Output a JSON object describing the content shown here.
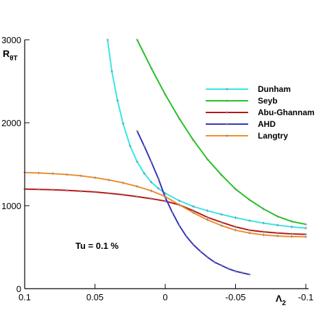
{
  "chart_data": {
    "type": "line",
    "title": "",
    "xlabel": "Λ",
    "xlabel_sub": "2",
    "ylabel": "R",
    "ylabel_sub": "θT",
    "xlim": [
      0.1,
      -0.1
    ],
    "ylim": [
      0,
      3000
    ],
    "x_reversed": true,
    "grid": false,
    "legend_position": "top-right",
    "x_ticks": [
      {
        "value": 0.1,
        "label": "0.1"
      },
      {
        "value": 0.05,
        "label": "0.05"
      },
      {
        "value": 0,
        "label": "0"
      },
      {
        "value": -0.05,
        "label": "-0.05"
      },
      {
        "value": -0.1,
        "label": "-0.1"
      }
    ],
    "y_ticks": [
      {
        "value": 0,
        "label": "0"
      },
      {
        "value": 1000,
        "label": "1000"
      },
      {
        "value": 2000,
        "label": "2000"
      },
      {
        "value": 3000,
        "label": "3000"
      }
    ],
    "annotation": "Tu = 0.1 %",
    "series": [
      {
        "name": "Dunham",
        "color": "#33e6e6",
        "x": [
          0.041,
          0.038,
          0.034,
          0.03,
          0.025,
          0.02,
          0.015,
          0.01,
          0.005,
          0,
          -0.01,
          -0.02,
          -0.03,
          -0.04,
          -0.05,
          -0.06,
          -0.07,
          -0.08,
          -0.09,
          -0.1
        ],
        "y": [
          3000,
          2620,
          2270,
          1990,
          1720,
          1530,
          1390,
          1285,
          1210,
          1150,
          1060,
          990,
          940,
          895,
          855,
          820,
          790,
          765,
          745,
          730
        ]
      },
      {
        "name": "Seyb",
        "color": "#22c022",
        "x": [
          0.02,
          0.01,
          0,
          -0.01,
          -0.02,
          -0.03,
          -0.04,
          -0.05,
          -0.06,
          -0.07,
          -0.08,
          -0.09,
          -0.1
        ],
        "y": [
          3000,
          2660,
          2340,
          2050,
          1790,
          1560,
          1370,
          1200,
          1070,
          960,
          870,
          810,
          775
        ]
      },
      {
        "name": "Abu-Ghannam",
        "color": "#b81414",
        "x": [
          0.1,
          0.09,
          0.08,
          0.07,
          0.06,
          0.05,
          0.04,
          0.03,
          0.02,
          0.01,
          0,
          -0.01,
          -0.02,
          -0.03,
          -0.04,
          -0.05,
          -0.06,
          -0.07,
          -0.08,
          -0.09,
          -0.1
        ],
        "y": [
          1200,
          1197,
          1192,
          1185,
          1176,
          1165,
          1150,
          1132,
          1110,
          1085,
          1055,
          1010,
          940,
          860,
          800,
          745,
          705,
          685,
          670,
          660,
          655
        ]
      },
      {
        "name": "AHD",
        "color": "#3232bb",
        "x": [
          0.02,
          0.015,
          0.01,
          0.005,
          0,
          -0.005,
          -0.01,
          -0.015,
          -0.02,
          -0.025,
          -0.03,
          -0.035,
          -0.04,
          -0.045,
          -0.05,
          -0.055,
          -0.06
        ],
        "y": [
          1900,
          1720,
          1530,
          1330,
          1100,
          920,
          760,
          630,
          530,
          450,
          380,
          320,
          280,
          240,
          210,
          190,
          170
        ]
      },
      {
        "name": "Langtry",
        "color": "#f08c28",
        "x": [
          0.1,
          0.09,
          0.08,
          0.07,
          0.06,
          0.05,
          0.04,
          0.03,
          0.02,
          0.01,
          0,
          -0.01,
          -0.02,
          -0.03,
          -0.04,
          -0.05,
          -0.06,
          -0.07,
          -0.08,
          -0.09,
          -0.1
        ],
        "y": [
          1400,
          1395,
          1387,
          1376,
          1360,
          1338,
          1310,
          1275,
          1232,
          1180,
          1110,
          1010,
          915,
          830,
          760,
          705,
          670,
          648,
          635,
          628,
          625
        ]
      }
    ]
  }
}
